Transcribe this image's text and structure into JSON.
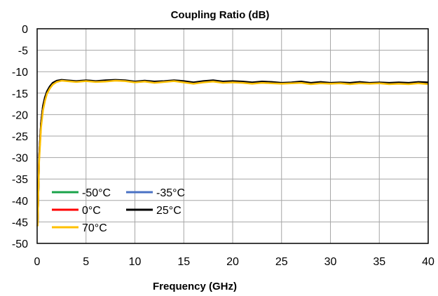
{
  "chart_data": {
    "type": "line",
    "title": "Coupling Ratio (dB)",
    "xlabel": "Frequency  (GHz)",
    "ylabel": "",
    "xlim": [
      0,
      40
    ],
    "ylim": [
      -50,
      0
    ],
    "xticks": [
      0,
      5,
      10,
      15,
      20,
      25,
      30,
      35,
      40
    ],
    "yticks": [
      0,
      -5,
      -10,
      -15,
      -20,
      -25,
      -30,
      -35,
      -40,
      -45,
      -50
    ],
    "grid": true,
    "legend_position": "bottom-left",
    "series": [
      {
        "name": "-50°C",
        "color": "#1aa34a",
        "x": [
          0.05,
          0.2,
          0.4,
          0.6,
          0.8,
          1.0,
          1.3,
          1.6,
          2.0,
          2.5,
          3.0,
          4.0,
          5.0,
          6.0,
          7.0,
          8.0,
          9.0,
          10.0,
          11.0,
          12.0,
          13.0,
          14.0,
          15.0,
          16.0,
          17.0,
          18.0,
          19.0,
          20.0,
          21.0,
          22.0,
          23.0,
          24.0,
          25.0,
          26.0,
          27.0,
          28.0,
          29.0,
          30.0,
          31.0,
          32.0,
          33.0,
          34.0,
          35.0,
          36.0,
          37.0,
          38.0,
          39.0,
          40.0
        ],
        "y": [
          -46,
          -30,
          -22,
          -18,
          -16,
          -14.8,
          -13.6,
          -12.8,
          -12.2,
          -12.0,
          -12.1,
          -12.3,
          -12.1,
          -12.3,
          -12.2,
          -12.0,
          -12.1,
          -12.4,
          -12.2,
          -12.5,
          -12.3,
          -12.1,
          -12.4,
          -12.7,
          -12.4,
          -12.2,
          -12.5,
          -12.4,
          -12.5,
          -12.7,
          -12.5,
          -12.6,
          -12.7,
          -12.6,
          -12.5,
          -12.8,
          -12.6,
          -12.7,
          -12.6,
          -12.8,
          -12.6,
          -12.7,
          -12.6,
          -12.8,
          -12.7,
          -12.8,
          -12.6,
          -12.8
        ]
      },
      {
        "name": "-35°C",
        "color": "#4a72c4",
        "x": [
          0.05,
          0.2,
          0.4,
          0.6,
          0.8,
          1.0,
          1.3,
          1.6,
          2.0,
          2.5,
          3.0,
          4.0,
          5.0,
          6.0,
          7.0,
          8.0,
          9.0,
          10.0,
          11.0,
          12.0,
          13.0,
          14.0,
          15.0,
          16.0,
          17.0,
          18.0,
          19.0,
          20.0,
          21.0,
          22.0,
          23.0,
          24.0,
          25.0,
          26.0,
          27.0,
          28.0,
          29.0,
          30.0,
          31.0,
          32.0,
          33.0,
          34.0,
          35.0,
          36.0,
          37.0,
          38.0,
          39.0,
          40.0
        ],
        "y": [
          -46,
          -30,
          -22,
          -18,
          -16,
          -14.8,
          -13.6,
          -12.8,
          -12.2,
          -12.0,
          -12.1,
          -12.3,
          -12.1,
          -12.3,
          -12.2,
          -12.0,
          -12.1,
          -12.4,
          -12.2,
          -12.5,
          -12.3,
          -12.1,
          -12.4,
          -12.7,
          -12.4,
          -12.2,
          -12.5,
          -12.4,
          -12.5,
          -12.7,
          -12.5,
          -12.6,
          -12.7,
          -12.6,
          -12.5,
          -12.8,
          -12.6,
          -12.7,
          -12.6,
          -12.8,
          -12.6,
          -12.7,
          -12.6,
          -12.8,
          -12.7,
          -12.8,
          -12.6,
          -12.8
        ]
      },
      {
        "name": "0°C",
        "color": "#ff0000",
        "x": [
          0.05,
          0.2,
          0.4,
          0.6,
          0.8,
          1.0,
          1.3,
          1.6,
          2.0,
          2.5,
          3.0,
          4.0,
          5.0,
          6.0,
          7.0,
          8.0,
          9.0,
          10.0,
          11.0,
          12.0,
          13.0,
          14.0,
          15.0,
          16.0,
          17.0,
          18.0,
          19.0,
          20.0,
          21.0,
          22.0,
          23.0,
          24.0,
          25.0,
          26.0,
          27.0,
          28.0,
          29.0,
          30.0,
          31.0,
          32.0,
          33.0,
          34.0,
          35.0,
          36.0,
          37.0,
          38.0,
          39.0,
          40.0
        ],
        "y": [
          -46,
          -30,
          -22,
          -18,
          -16,
          -14.8,
          -13.6,
          -12.8,
          -12.2,
          -12.0,
          -12.1,
          -12.3,
          -12.1,
          -12.3,
          -12.2,
          -12.0,
          -12.1,
          -12.4,
          -12.2,
          -12.5,
          -12.3,
          -12.1,
          -12.4,
          -12.7,
          -12.4,
          -12.2,
          -12.5,
          -12.4,
          -12.5,
          -12.7,
          -12.5,
          -12.6,
          -12.7,
          -12.6,
          -12.5,
          -12.8,
          -12.6,
          -12.7,
          -12.6,
          -12.8,
          -12.6,
          -12.7,
          -12.6,
          -12.8,
          -12.7,
          -12.8,
          -12.6,
          -12.8
        ]
      },
      {
        "name": "25°C",
        "color": "#000000",
        "x": [
          0.05,
          0.2,
          0.4,
          0.6,
          0.8,
          1.0,
          1.3,
          1.6,
          2.0,
          2.5,
          3.0,
          4.0,
          5.0,
          6.0,
          7.0,
          8.0,
          9.0,
          10.0,
          11.0,
          12.0,
          13.0,
          14.0,
          15.0,
          16.0,
          17.0,
          18.0,
          19.0,
          20.0,
          21.0,
          22.0,
          23.0,
          24.0,
          25.0,
          26.0,
          27.0,
          28.0,
          29.0,
          30.0,
          31.0,
          32.0,
          33.0,
          34.0,
          35.0,
          36.0,
          37.0,
          38.0,
          39.0,
          40.0
        ],
        "y": [
          -46,
          -30,
          -22,
          -18,
          -16,
          -14.6,
          -13.4,
          -12.6,
          -12.1,
          -11.9,
          -12.0,
          -12.2,
          -12.0,
          -12.2,
          -12.0,
          -11.9,
          -12.0,
          -12.3,
          -12.1,
          -12.3,
          -12.2,
          -12.0,
          -12.2,
          -12.5,
          -12.2,
          -12.0,
          -12.3,
          -12.2,
          -12.3,
          -12.5,
          -12.3,
          -12.4,
          -12.6,
          -12.5,
          -12.3,
          -12.6,
          -12.4,
          -12.6,
          -12.5,
          -12.6,
          -12.4,
          -12.6,
          -12.5,
          -12.6,
          -12.5,
          -12.6,
          -12.4,
          -12.5
        ]
      },
      {
        "name": "70°C",
        "color": "#ffc000",
        "x": [
          0.05,
          0.2,
          0.4,
          0.6,
          0.8,
          1.0,
          1.3,
          1.6,
          2.0,
          2.5,
          3.0,
          4.0,
          5.0,
          6.0,
          7.0,
          8.0,
          9.0,
          10.0,
          11.0,
          12.0,
          13.0,
          14.0,
          15.0,
          16.0,
          17.0,
          18.0,
          19.0,
          20.0,
          21.0,
          22.0,
          23.0,
          24.0,
          25.0,
          26.0,
          27.0,
          28.0,
          29.0,
          30.0,
          31.0,
          32.0,
          33.0,
          34.0,
          35.0,
          36.0,
          37.0,
          38.0,
          39.0,
          40.0
        ],
        "y": [
          -46,
          -31,
          -23,
          -19,
          -16.8,
          -15.2,
          -13.9,
          -13.0,
          -12.4,
          -12.1,
          -12.2,
          -12.4,
          -12.2,
          -12.4,
          -12.3,
          -12.1,
          -12.2,
          -12.5,
          -12.3,
          -12.6,
          -12.4,
          -12.2,
          -12.5,
          -12.8,
          -12.5,
          -12.3,
          -12.6,
          -12.5,
          -12.6,
          -12.8,
          -12.6,
          -12.7,
          -12.8,
          -12.7,
          -12.6,
          -12.9,
          -12.7,
          -12.8,
          -12.7,
          -12.9,
          -12.7,
          -12.8,
          -12.7,
          -12.9,
          -12.8,
          -12.9,
          -12.7,
          -12.9
        ]
      }
    ]
  }
}
